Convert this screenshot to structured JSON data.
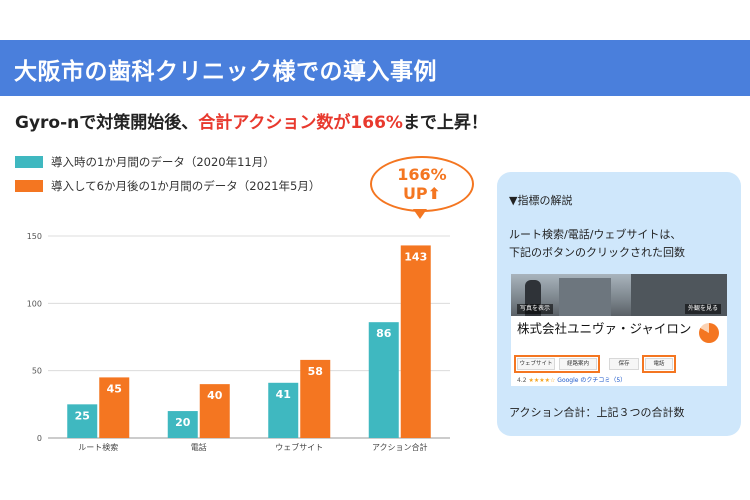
{
  "title": "大阪市の歯科クリニック様での導入事例",
  "headline": {
    "prefix": "Gyro-nで対策開始後、",
    "highlight": "合計アクション数が166%",
    "suffix": "まで上昇！"
  },
  "legend": [
    {
      "label": "導入時の1か月間のデータ（2020年11月）",
      "color": "#3fb8c0"
    },
    {
      "label": "導入して6か月後の1か月間のデータ（2021年5月）",
      "color": "#f47621"
    }
  ],
  "callout": {
    "line1": "166%",
    "line2": "UP⬆"
  },
  "chart_data": {
    "type": "bar",
    "categories": [
      "ルート検索",
      "電話",
      "ウェブサイト",
      "アクション合計"
    ],
    "series": [
      {
        "name": "導入時の1か月間のデータ（2020年11月）",
        "values": [
          25,
          20,
          41,
          86
        ],
        "color": "#3fb8c0"
      },
      {
        "name": "導入して6か月後の1か月間のデータ（2021年5月）",
        "values": [
          45,
          40,
          58,
          143
        ],
        "color": "#f47621"
      }
    ],
    "yticks": [
      0,
      50,
      100,
      150
    ],
    "ylim": [
      0,
      150
    ],
    "grid": true,
    "data_labels": true
  },
  "panel": {
    "heading": "▼指標の解説",
    "desc_line1": "ルート検索/電話/ウェブサイトは、",
    "desc_line2": "下記のボタンのクリックされた回数",
    "photo_left_label": "写真を表示",
    "photo_right_label": "外観を見る",
    "company": "株式会社ユニヴァ・ジャイロン",
    "buttons": [
      "ウェブサイト",
      "経路案内",
      "保存",
      "電話"
    ],
    "rating": {
      "score": "4.2",
      "stars": "★★★★☆",
      "link": "Google のクチコミ（5）"
    },
    "footer": "アクション合計：上記３つの合計数"
  }
}
